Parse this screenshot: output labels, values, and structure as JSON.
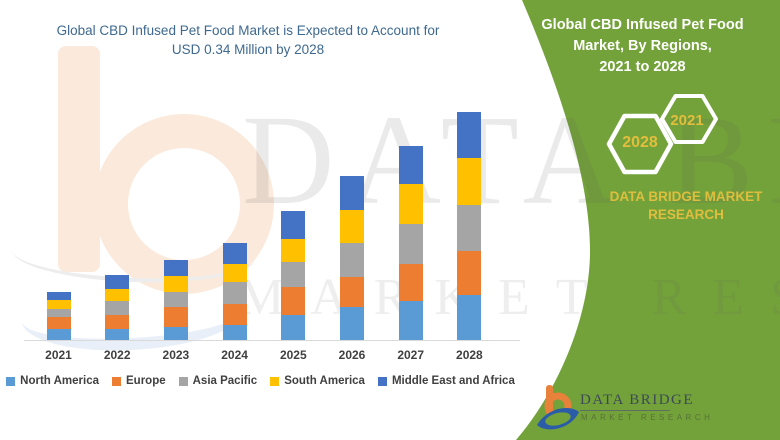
{
  "header": {
    "title_line1": "Global CBD Infused Pet Food Market is Expected to Account for",
    "title_line2": "USD 0.34 Million by 2028",
    "title_color": "#3E6990"
  },
  "chart_data": {
    "type": "bar",
    "stacked": true,
    "title": "Global CBD Infused Pet Food Market is Expected to Account for USD 0.34 Million by 2028",
    "unit": "USD Million (segment values estimated from bar heights; 2028 total = 0.34 per title)",
    "categories": [
      "2021",
      "2022",
      "2023",
      "2024",
      "2025",
      "2026",
      "2027",
      "2028"
    ],
    "series": [
      {
        "name": "North America",
        "color": "#5B9BD5",
        "values": [
          0.017,
          0.017,
          0.02,
          0.022,
          0.037,
          0.049,
          0.058,
          0.067
        ]
      },
      {
        "name": "Europe",
        "color": "#ED7D31",
        "values": [
          0.017,
          0.021,
          0.029,
          0.031,
          0.042,
          0.045,
          0.056,
          0.066
        ]
      },
      {
        "name": "Asia Pacific",
        "color": "#A5A5A5",
        "values": [
          0.013,
          0.02,
          0.023,
          0.033,
          0.037,
          0.051,
          0.059,
          0.068
        ]
      },
      {
        "name": "South America",
        "color": "#FFC000",
        "values": [
          0.012,
          0.018,
          0.023,
          0.028,
          0.035,
          0.049,
          0.059,
          0.07
        ]
      },
      {
        "name": "Middle East and Africa",
        "color": "#4472C4",
        "values": [
          0.012,
          0.021,
          0.025,
          0.03,
          0.041,
          0.05,
          0.058,
          0.069
        ]
      }
    ],
    "totals_by_year": [
      0.071,
      0.097,
      0.12,
      0.144,
      0.192,
      0.244,
      0.29,
      0.34
    ],
    "ylim": [
      0,
      0.36
    ],
    "y_axis": "hidden",
    "grid": false,
    "legend_position": "bottom"
  },
  "side_panel": {
    "background": "#73A23A",
    "title_line1": "Global CBD Infused Pet Food",
    "title_line2": "Market, By Regions,",
    "title_line3": "2021 to 2028",
    "hexagon_back_label": "2028",
    "hexagon_front_label": "2021",
    "hexagon_label_color": "#E2BE3C",
    "brand_text": "DATA BRIDGE MARKET RESEARCH",
    "brand_color": "#DFBE3E"
  },
  "watermark": {
    "primary": "DATA BRIDGE",
    "secondary": "MARKET RESEARCH"
  },
  "footer_logo": {
    "brand": "DATA BRIDGE",
    "subtitle": "MARKET RESEARCH"
  }
}
